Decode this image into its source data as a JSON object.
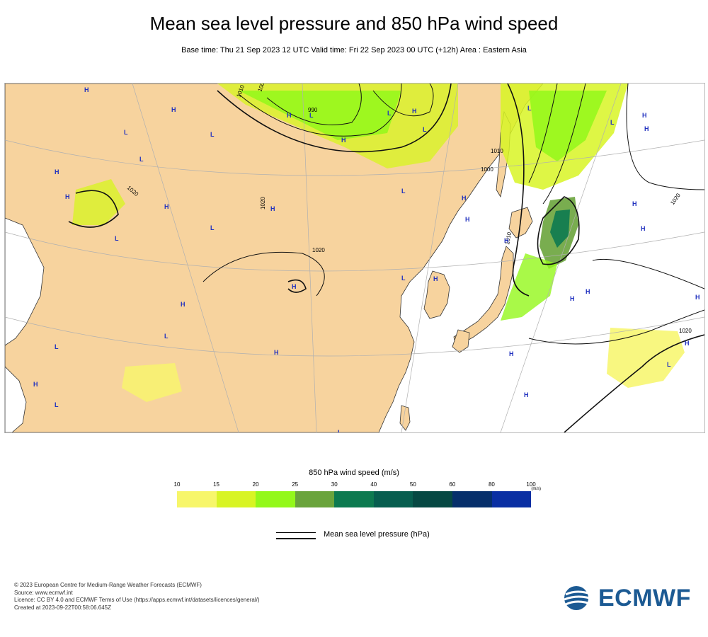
{
  "title": "Mean sea level pressure and 850 hPa wind speed",
  "subtitle": "Base time: Thu 21 Sep 2023 12 UTC Valid time: Fri 22 Sep 2023 00 UTC (+12h) Area : Eastern Asia",
  "colors": {
    "land": "#f7d39e",
    "sea": "#ffffff",
    "coast": "#333333",
    "pressure_line": "#111111",
    "system_label": "#1f2fbf",
    "graticule": "#b0b0b0"
  },
  "colorbar": {
    "title": "850 hPa wind speed (m/s)",
    "ticks": [
      "10",
      "15",
      "20",
      "25",
      "30",
      "40",
      "50",
      "60",
      "80",
      "100"
    ],
    "unit": "(m/s)",
    "colors": [
      "#f7f66a",
      "#d8f424",
      "#93f81a",
      "#6aa43c",
      "#0d7a50",
      "#075e4f",
      "#064843",
      "#062f6b",
      "#0a2fa3"
    ]
  },
  "mslp_legend": {
    "label": "Mean sea level pressure (hPa)"
  },
  "contour_labels": [
    "1020",
    "1010",
    "1000",
    "990",
    "1000",
    "1020",
    "1020",
    "1020",
    "1010",
    "1020",
    "1010"
  ],
  "systems": [
    "H",
    "H",
    "L",
    "H",
    "H",
    "L",
    "L",
    "H",
    "L",
    "L",
    "H",
    "L",
    "H",
    "L",
    "H",
    "H",
    "L",
    "L",
    "H",
    "L",
    "H",
    "H",
    "H",
    "H",
    "L",
    "H",
    "L",
    "H",
    "L",
    "L",
    "H",
    "H",
    "H",
    "H",
    "H",
    "H",
    "H",
    "L",
    "H",
    "H",
    "H",
    "L",
    "H",
    "L"
  ],
  "credits": [
    "© 2023 European Centre for Medium-Range Weather Forecasts (ECMWF)",
    "Source: www.ecmwf.int",
    "Licence: CC BY 4.0 and ECMWF Terms of Use (https://apps.ecmwf.int/datasets/licences/general/)",
    "Created at 2023-09-22T00:58:06.645Z"
  ],
  "logo": {
    "text": "ECMWF"
  }
}
